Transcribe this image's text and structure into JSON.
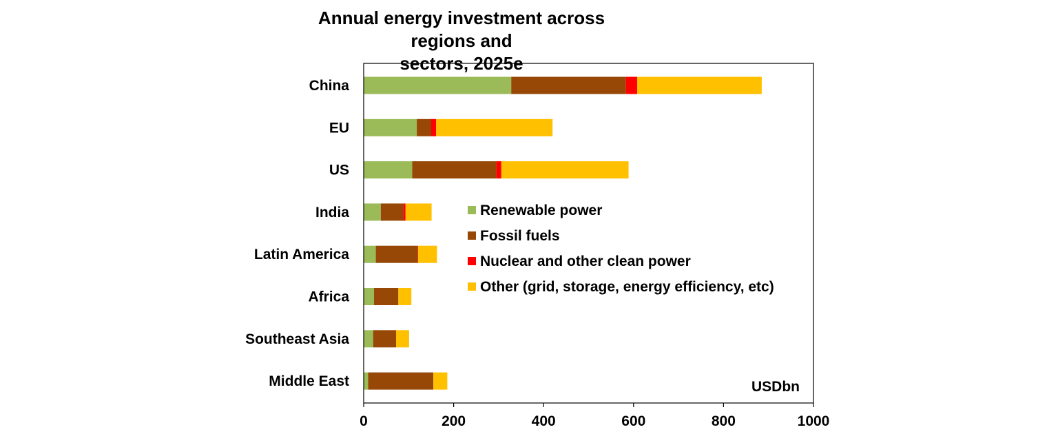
{
  "chart_data": {
    "type": "bar",
    "orientation": "horizontal",
    "stacked": true,
    "title_line1": "Annual energy investment across regions and",
    "title_line2": "sectors, 2025e",
    "unit_label": "USDbn",
    "categories": [
      "China",
      "EU",
      "US",
      "India",
      "Latin America",
      "Africa",
      "Southeast Asia",
      "Middle East"
    ],
    "series": [
      {
        "name": "Renewable power",
        "color": "#9BBB59",
        "values": [
          328,
          118,
          108,
          38,
          27,
          23,
          21,
          10
        ]
      },
      {
        "name": "Fossil fuels",
        "color": "#974706",
        "values": [
          255,
          32,
          187,
          50,
          93,
          54,
          51,
          145
        ]
      },
      {
        "name": "Nuclear and other clean power",
        "color": "#FF0000",
        "values": [
          25,
          11,
          11,
          5,
          1,
          0,
          0,
          0
        ]
      },
      {
        "name": "Other (grid, storage, energy efficiency, etc)",
        "color": "#FFC000",
        "values": [
          277,
          259,
          283,
          58,
          42,
          29,
          29,
          31
        ]
      }
    ],
    "xlim": [
      0,
      1000
    ],
    "xticks": [
      0,
      200,
      400,
      600,
      800,
      1000
    ],
    "xlabel": "",
    "ylabel": "",
    "legend_position": "center-right",
    "grid": false
  }
}
